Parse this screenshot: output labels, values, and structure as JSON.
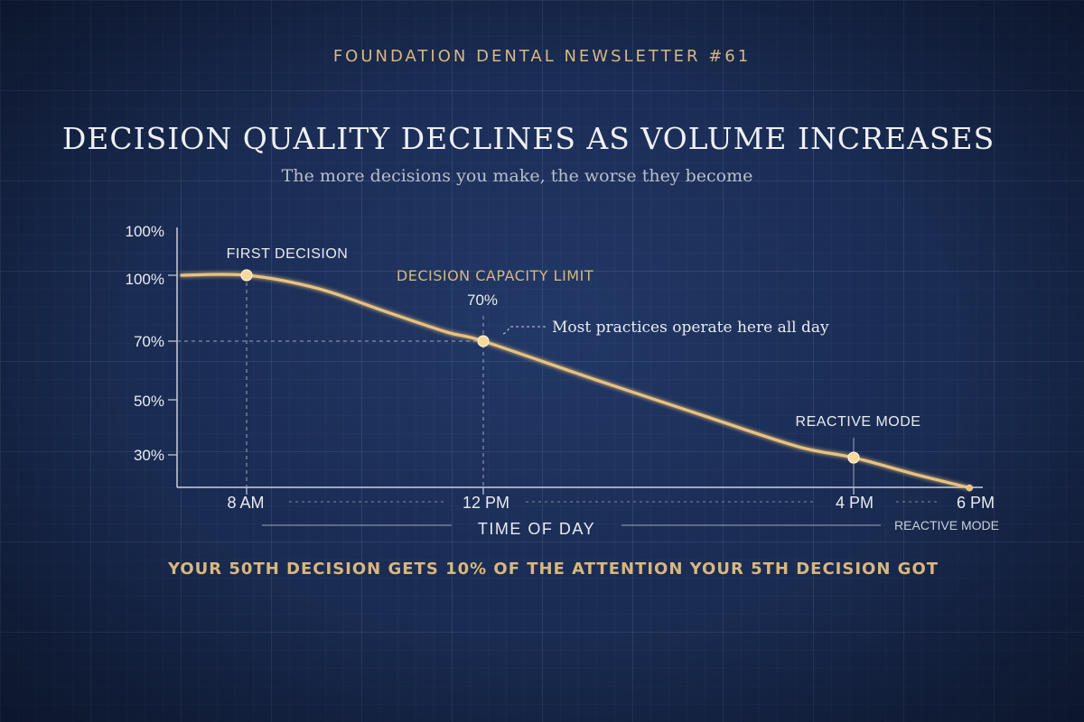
{
  "header": {
    "newsletter": "FOUNDATION DENTAL NEWSLETTER #61",
    "title": "DECISION QUALITY DECLINES AS VOLUME INCREASES",
    "subtitle": "The more decisions you make, the worse they become"
  },
  "footer": {
    "text": "YOUR 50TH DECISION GETS 10% OF THE ATTENTION YOUR 5TH DECISION GOT"
  },
  "colors": {
    "background": "#1b2d55",
    "accent": "#e9c27d",
    "text": "#eef0f4",
    "muted": "#b8bfcc"
  },
  "chart_data": {
    "type": "line",
    "xlabel": "TIME OF DAY",
    "ylabel": "",
    "y_tick_labels": [
      "100%",
      "100%",
      "70%",
      "50%",
      "30%"
    ],
    "x_tick_labels": [
      "8 AM",
      "12 PM",
      "4 PM",
      "6 PM"
    ],
    "x_hours": [
      8,
      12,
      16,
      18
    ],
    "series": [
      {
        "x": [
          6.9,
          8,
          9.2,
          10.4,
          11.4,
          12,
          13.2,
          14.4,
          15.4,
          16,
          17,
          17.9
        ],
        "y": [
          100,
          100,
          94,
          83,
          74,
          70,
          57,
          44,
          33,
          29,
          23,
          18
        ]
      }
    ],
    "markers": [
      {
        "x": 8,
        "y": 100
      },
      {
        "x": 12,
        "y": 70
      },
      {
        "x": 16,
        "y": 29
      },
      {
        "x": 17.9,
        "y": 18
      }
    ],
    "annotations": {
      "first_decision": "FIRST DECISION",
      "capacity_limit": "DECISION CAPACITY LIMIT",
      "capacity_value": "70%",
      "most_practices": "Most practices operate here all day",
      "reactive_mode": "REACTIVE MODE",
      "reactive_mode_axis": "REACTIVE MODE"
    }
  }
}
